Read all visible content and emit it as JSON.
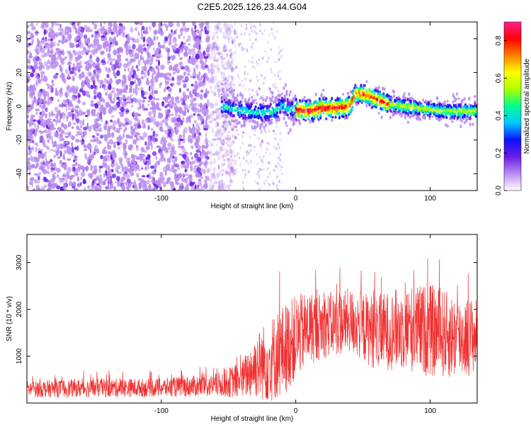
{
  "figure": {
    "title": "C2E5.2025.126.23.44.G04"
  },
  "chart_data": [
    {
      "type": "heatmap",
      "title": "C2E5.2025.126.23.44.G04",
      "xlabel": "Height of straight line (km)",
      "ylabel": "Frequency (Hz)",
      "xlim": [
        -200,
        135
      ],
      "ylim": [
        -50,
        50
      ],
      "x_ticks": [
        "-100",
        "0",
        "100"
      ],
      "x_tick_values": [
        -100,
        0,
        100
      ],
      "y_ticks": [
        "-40",
        "-20",
        "0",
        "20",
        "40"
      ],
      "y_tick_values": [
        -40,
        -20,
        0,
        20,
        40
      ],
      "ridge": {
        "x": [
          -55,
          -45,
          -35,
          -25,
          -15,
          -10,
          -5,
          0,
          10,
          20,
          30,
          40,
          45,
          50,
          55,
          60,
          70,
          80,
          90,
          100,
          110,
          120,
          135
        ],
        "y": [
          0,
          -2,
          -3,
          -4,
          -3,
          1,
          -2,
          -2,
          -3,
          -1,
          -1,
          0,
          8,
          7,
          6,
          4,
          1,
          0,
          -1,
          -2,
          -3,
          -3,
          -3
        ]
      },
      "noise_region": {
        "x_range": [
          -200,
          -55
        ],
        "description_free": true
      },
      "colorbar": {
        "label": "Normalized spectral amplitude",
        "range": [
          0.0,
          0.9
        ],
        "ticks": [
          "0.0",
          "0.2",
          "0.4",
          "0.6",
          "0.8"
        ],
        "tick_values": [
          0.0,
          0.2,
          0.4,
          0.6,
          0.8
        ],
        "colors": [
          "#ffffff",
          "#b98cf0",
          "#6a1ee6",
          "#1010ff",
          "#00c8ff",
          "#00ff90",
          "#aaff00",
          "#ffff00",
          "#ff8000",
          "#ff0000",
          "#ff2090"
        ]
      }
    },
    {
      "type": "line",
      "xlabel": "Height of straight line (km)",
      "ylabel": "SNR (10 * v/v)",
      "xlim": [
        -200,
        135
      ],
      "ylim": [
        0,
        3600
      ],
      "x_ticks": [
        "-100",
        "0",
        "100"
      ],
      "x_tick_values": [
        -100,
        0,
        100
      ],
      "y_ticks": [
        "1000",
        "2000",
        "3000"
      ],
      "y_tick_values": [
        1000,
        2000,
        3000
      ],
      "color": "#f03030",
      "envelope": {
        "x": [
          -200,
          -150,
          -100,
          -60,
          -40,
          -30,
          -20,
          -10,
          0,
          10,
          20,
          40,
          60,
          80,
          100,
          120,
          135
        ],
        "mean": [
          300,
          320,
          330,
          380,
          500,
          800,
          900,
          1100,
          1400,
          1600,
          1650,
          1750,
          1500,
          1600,
          1550,
          1400,
          1450
        ],
        "amp": [
          180,
          200,
          200,
          250,
          400,
          700,
          900,
          1000,
          900,
          800,
          700,
          700,
          800,
          900,
          1000,
          900,
          800
        ]
      }
    }
  ]
}
